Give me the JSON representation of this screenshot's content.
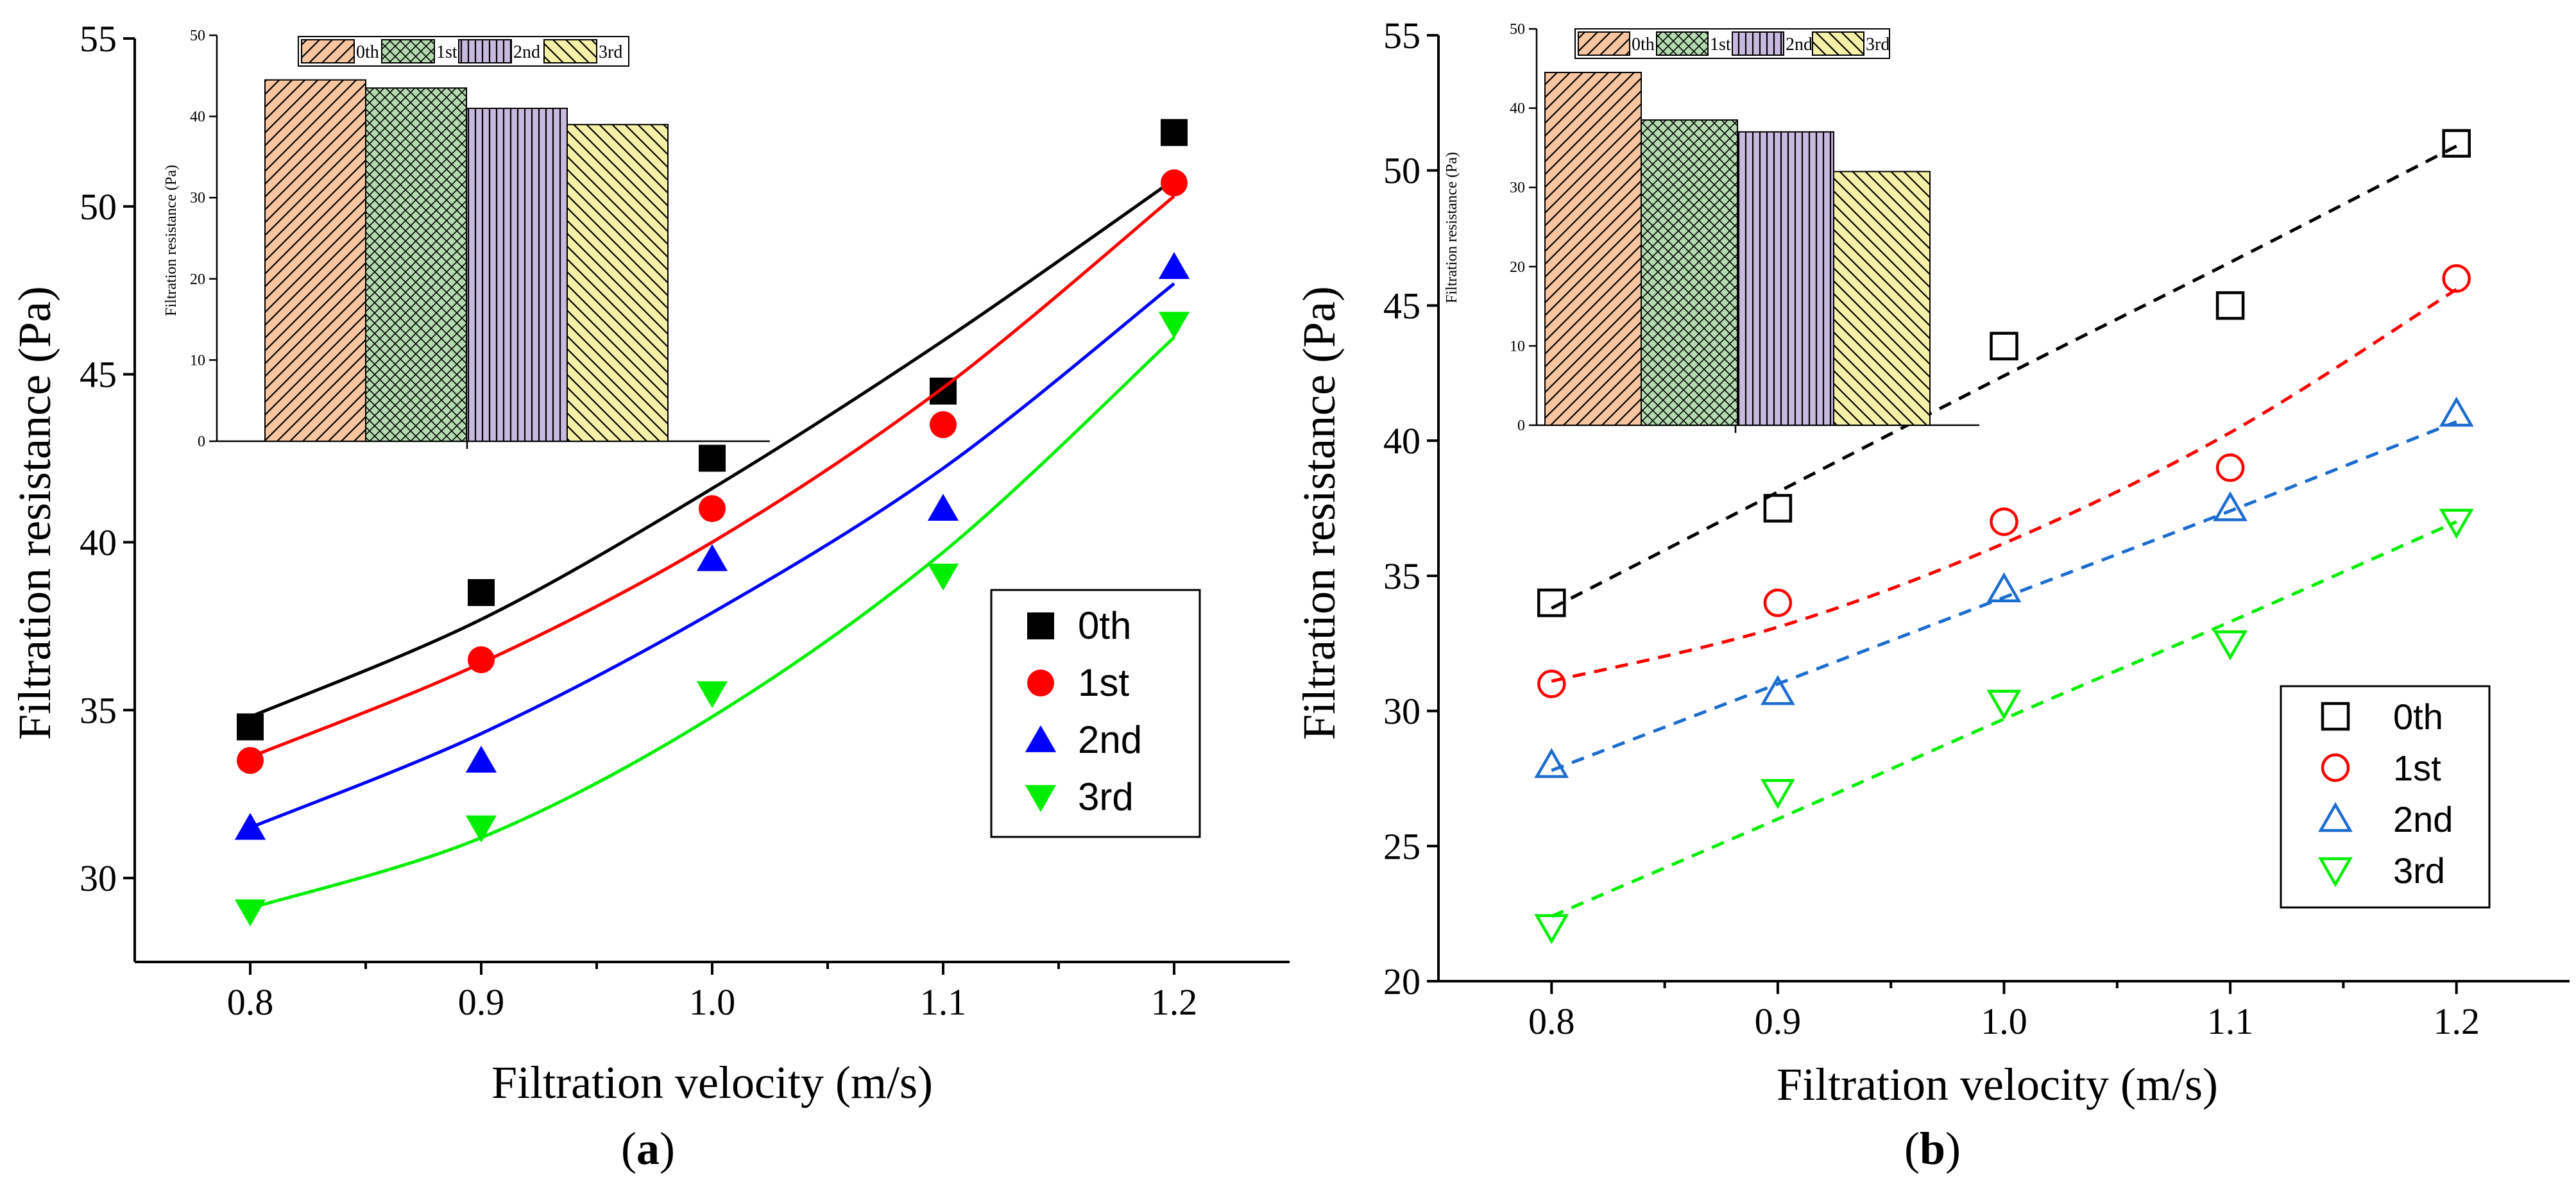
{
  "chart_data": [
    {
      "panel": "a",
      "caption_prefix": "(",
      "caption_letter": "a",
      "caption_suffix": ")",
      "type": "scatter",
      "xlabel": "Filtration velocity (m/s)",
      "ylabel": "Filtration resistance (Pa)",
      "xlim": [
        0.75,
        1.25
      ],
      "ylim": [
        27.5,
        55
      ],
      "xticks": [
        "0.8",
        "0.9",
        "1.0",
        "1.1",
        "1.2"
      ],
      "yticks": [
        "30",
        "35",
        "40",
        "45",
        "50",
        "55"
      ],
      "legend_location": "center-right",
      "fit": "solid",
      "marker_fill": "filled",
      "series": [
        {
          "name": "0th",
          "color": "#000000",
          "marker": "square",
          "x": [
            0.8,
            0.9,
            1.0,
            1.1,
            1.2
          ],
          "values": [
            34.5,
            38.5,
            42.5,
            44.5,
            52.2
          ],
          "fit_values": [
            34.8,
            37.7,
            41.6,
            46.0,
            50.8
          ]
        },
        {
          "name": "1st",
          "color": "#ff0000",
          "marker": "circle",
          "x": [
            0.8,
            0.9,
            1.0,
            1.1,
            1.2
          ],
          "values": [
            33.5,
            36.5,
            41.0,
            43.5,
            50.7
          ],
          "fit_values": [
            33.6,
            36.4,
            40.0,
            44.6,
            50.3
          ]
        },
        {
          "name": "2nd",
          "color": "#0000ff",
          "marker": "triangle-up",
          "x": [
            0.8,
            0.9,
            1.0,
            1.1,
            1.2
          ],
          "values": [
            31.5,
            33.5,
            39.5,
            41.0,
            48.2
          ],
          "fit_values": [
            31.5,
            34.3,
            37.9,
            42.2,
            47.7
          ]
        },
        {
          "name": "3rd",
          "color": "#00ee00",
          "marker": "triangle-down",
          "x": [
            0.8,
            0.9,
            1.0,
            1.1,
            1.2
          ],
          "values": [
            29.0,
            31.5,
            35.5,
            39.0,
            46.5
          ],
          "fit_values": [
            29.1,
            31.2,
            34.8,
            39.7,
            46.1
          ]
        }
      ],
      "inset": {
        "type": "bar",
        "ylabel": "Filtration resistance (Pa)",
        "ylim": [
          0,
          50
        ],
        "yticks": [
          "0",
          "10",
          "20",
          "30",
          "40",
          "50"
        ],
        "legend_location": "top",
        "series": [
          {
            "name": "0th",
            "value": 44.5,
            "color": "#f7c59f",
            "pattern": "diagonal"
          },
          {
            "name": "1st",
            "value": 43.5,
            "color": "#b4dbb0",
            "pattern": "crosshatch"
          },
          {
            "name": "2nd",
            "value": 41.0,
            "color": "#c8b9de",
            "pattern": "vertical"
          },
          {
            "name": "3rd",
            "value": 39.0,
            "color": "#f5f0a8",
            "pattern": "backdiagonal"
          }
        ]
      }
    },
    {
      "panel": "b",
      "caption_prefix": "(",
      "caption_letter": "b",
      "caption_suffix": ")",
      "type": "scatter",
      "xlabel": "Filtration velocity (m/s)",
      "ylabel": "Filtration resistance (Pa)",
      "xlim": [
        0.75,
        1.25
      ],
      "ylim": [
        20,
        55
      ],
      "xticks": [
        "0.8",
        "0.9",
        "1.0",
        "1.1",
        "1.2"
      ],
      "yticks": [
        "20",
        "25",
        "30",
        "35",
        "40",
        "45",
        "50",
        "55"
      ],
      "legend_location": "lower-right",
      "fit": "dashed",
      "marker_fill": "open",
      "series": [
        {
          "name": "0th",
          "color": "#000000",
          "marker": "square",
          "x": [
            0.8,
            0.9,
            1.0,
            1.1,
            1.2
          ],
          "values": [
            34.0,
            37.5,
            43.5,
            45.0,
            51.0
          ],
          "fit_values": [
            33.8,
            38.1,
            42.4,
            46.6,
            50.9
          ]
        },
        {
          "name": "1st",
          "color": "#ff0000",
          "marker": "circle",
          "x": [
            0.8,
            0.9,
            1.0,
            1.1,
            1.2
          ],
          "values": [
            31.0,
            34.0,
            37.0,
            39.0,
            46.0
          ],
          "fit_values": [
            31.1,
            33.1,
            36.2,
            40.3,
            45.6
          ]
        },
        {
          "name": "2nd",
          "color": "#1c6dd0",
          "marker": "triangle-up",
          "x": [
            0.8,
            0.9,
            1.0,
            1.1,
            1.2
          ],
          "values": [
            28.0,
            30.7,
            34.5,
            37.5,
            41.0
          ],
          "fit_values": [
            27.8,
            31.0,
            34.2,
            37.4,
            40.7
          ]
        },
        {
          "name": "3rd",
          "color": "#00ee00",
          "marker": "triangle-down",
          "x": [
            0.8,
            0.9,
            1.0,
            1.1,
            1.2
          ],
          "values": [
            22.0,
            27.0,
            30.3,
            32.5,
            37.0
          ],
          "fit_values": [
            22.4,
            26.0,
            29.7,
            33.3,
            37.0
          ]
        }
      ],
      "inset": {
        "type": "bar",
        "ylabel": "Filtration resistance (Pa)",
        "ylim": [
          0,
          50
        ],
        "yticks": [
          "0",
          "10",
          "20",
          "30",
          "40",
          "50"
        ],
        "legend_location": "top",
        "series": [
          {
            "name": "0th",
            "value": 44.5,
            "color": "#f7c59f",
            "pattern": "diagonal"
          },
          {
            "name": "1st",
            "value": 38.5,
            "color": "#b4dbb0",
            "pattern": "crosshatch"
          },
          {
            "name": "2nd",
            "value": 37.0,
            "color": "#c8b9de",
            "pattern": "vertical"
          },
          {
            "name": "3rd",
            "value": 32.0,
            "color": "#f5f0a8",
            "pattern": "backdiagonal"
          }
        ]
      }
    }
  ]
}
